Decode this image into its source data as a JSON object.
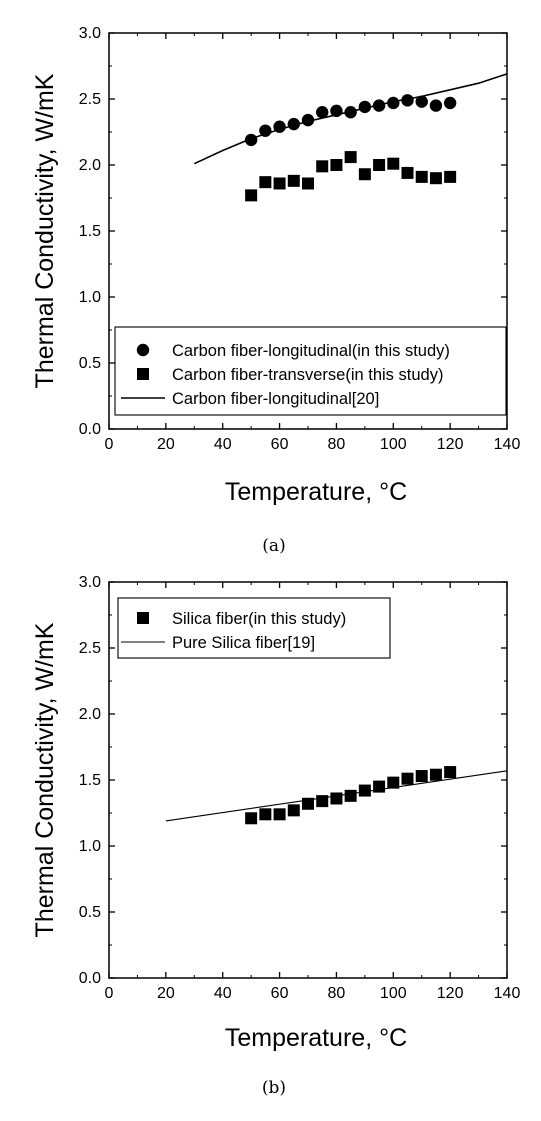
{
  "chart_data": [
    {
      "type": "scatter",
      "caption": "(a)",
      "xlabel": "Temperature, °C",
      "ylabel": "Thermal Conductivity, W/mK",
      "xlim": [
        0,
        140
      ],
      "ylim": [
        0.0,
        3.0
      ],
      "x_ticks": [
        "0",
        "20",
        "40",
        "60",
        "80",
        "100",
        "120",
        "140"
      ],
      "y_ticks": [
        "0.0",
        "0.5",
        "1.0",
        "1.5",
        "2.0",
        "2.5",
        "3.0"
      ],
      "grid": false,
      "legend_position": "bottom",
      "series": [
        {
          "name": "Carbon fiber-longitudinal(in this study)",
          "marker": "circle",
          "x": [
            50,
            55,
            60,
            65,
            70,
            75,
            80,
            85,
            90,
            95,
            100,
            105,
            110,
            115,
            120
          ],
          "y": [
            2.19,
            2.26,
            2.29,
            2.31,
            2.34,
            2.4,
            2.41,
            2.4,
            2.44,
            2.45,
            2.47,
            2.49,
            2.48,
            2.45,
            2.47
          ]
        },
        {
          "name": "Carbon fiber-transverse(in this study)",
          "marker": "square",
          "x": [
            50,
            55,
            60,
            65,
            70,
            75,
            80,
            85,
            90,
            95,
            100,
            105,
            110,
            115,
            120
          ],
          "y": [
            1.77,
            1.87,
            1.86,
            1.88,
            1.86,
            1.99,
            2.0,
            2.06,
            1.93,
            2.0,
            2.01,
            1.94,
            1.91,
            1.9,
            1.91
          ]
        },
        {
          "name": "Carbon fiber-longitudinal[20]",
          "marker": "line",
          "x": [
            30,
            40,
            50,
            60,
            70,
            80,
            90,
            100,
            110,
            120,
            130,
            140
          ],
          "y": [
            2.01,
            2.11,
            2.2,
            2.27,
            2.33,
            2.38,
            2.43,
            2.48,
            2.52,
            2.57,
            2.62,
            2.69
          ]
        }
      ]
    },
    {
      "type": "scatter",
      "caption": "(b)",
      "xlabel": "Temperature, °C",
      "ylabel": "Thermal Conductivity, W/mK",
      "xlim": [
        0,
        140
      ],
      "ylim": [
        0.0,
        3.0
      ],
      "x_ticks": [
        "0",
        "20",
        "40",
        "60",
        "80",
        "100",
        "120",
        "140"
      ],
      "y_ticks": [
        "0.0",
        "0.5",
        "1.0",
        "1.5",
        "2.0",
        "2.5",
        "3.0"
      ],
      "grid": false,
      "legend_position": "top-left",
      "series": [
        {
          "name": "Silica fiber(in this study)",
          "marker": "square",
          "x": [
            50,
            55,
            60,
            65,
            70,
            75,
            80,
            85,
            90,
            95,
            100,
            105,
            110,
            115,
            120
          ],
          "y": [
            1.21,
            1.24,
            1.24,
            1.27,
            1.32,
            1.34,
            1.36,
            1.38,
            1.42,
            1.45,
            1.48,
            1.51,
            1.53,
            1.54,
            1.56
          ]
        },
        {
          "name": "Pure Silica fiber[19]",
          "marker": "line",
          "x": [
            20,
            140
          ],
          "y": [
            1.19,
            1.57
          ]
        }
      ]
    }
  ]
}
